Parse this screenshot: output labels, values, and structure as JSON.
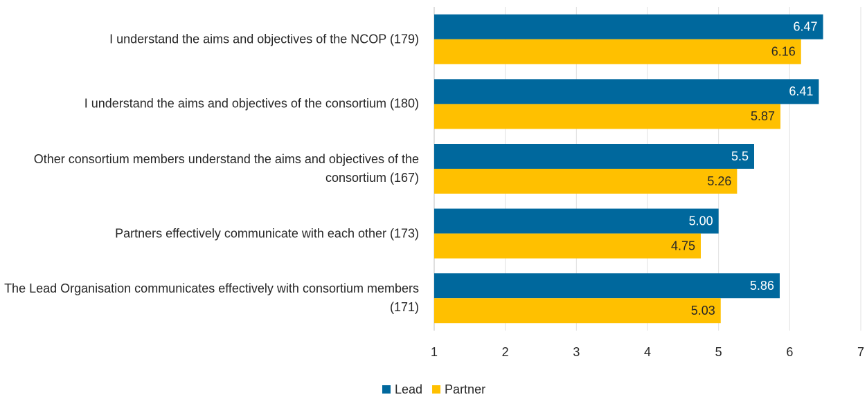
{
  "chart_data": {
    "type": "hbar",
    "categories": [
      "I understand the aims and objectives of the NCOP (179)",
      "I understand the aims and objectives of the consortium (180)",
      "Other consortium members understand the aims and objectives of the consortium (167)",
      "Partners effectively communicate with each other (173)",
      "The Lead Organisation communicates effectively with consortium members (171)"
    ],
    "series": [
      {
        "name": "Lead",
        "color": "#00689d",
        "values": [
          6.47,
          6.41,
          5.5,
          5.0,
          5.86
        ],
        "value_labels": [
          "6.47",
          "6.41",
          "5.5",
          "5.00",
          "5.86"
        ]
      },
      {
        "name": "Partner",
        "color": "#ffc000",
        "values": [
          6.16,
          5.87,
          5.26,
          4.75,
          5.03
        ],
        "value_labels": [
          "6.16",
          "5.87",
          "5.26",
          "4.75",
          "5.03"
        ]
      }
    ],
    "xlim": [
      1,
      7
    ],
    "xticks": [
      1,
      2,
      3,
      4,
      5,
      6,
      7
    ],
    "grid": true,
    "legend": "bottom"
  }
}
